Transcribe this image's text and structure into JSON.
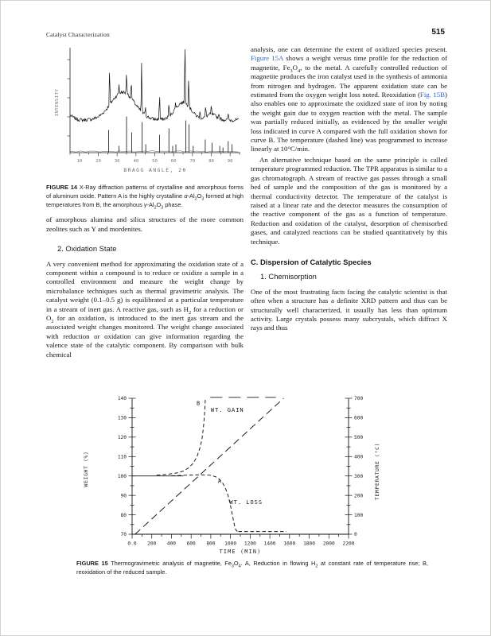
{
  "page": {
    "header_left": "Catalyst Characterization",
    "page_number": "515"
  },
  "colors": {
    "link_blue": "#2e62c9",
    "ink": "#141414"
  },
  "figure14": {
    "caption": [
      {
        "t": "FIGURE 14",
        "b": true
      },
      {
        "t": "  X-Ray diffraction patterns of crystalline and amorphous forms of aluminum oxide. Pattern A is the highly crystalline "
      },
      {
        "t": "α",
        "i": true
      },
      {
        "t": "-Al"
      },
      {
        "t": "2",
        "sub": true
      },
      {
        "t": "O"
      },
      {
        "t": "3",
        "sub": true
      },
      {
        "t": " formed at high temperatures from B, the amorphous "
      },
      {
        "t": "γ",
        "i": true
      },
      {
        "t": "-Al"
      },
      {
        "t": "2",
        "sub": true
      },
      {
        "t": "O"
      },
      {
        "t": "3",
        "sub": true
      },
      {
        "t": " phase."
      }
    ]
  },
  "figure15": {
    "caption": [
      {
        "t": "FIGURE 15",
        "b": true
      },
      {
        "t": "  Thermogravimetric analysis of magnetite, Fe"
      },
      {
        "t": "3",
        "sub": true
      },
      {
        "t": "O"
      },
      {
        "t": "4",
        "sub": true
      },
      {
        "t": ". A, Reduction in flowing H"
      },
      {
        "t": "2",
        "sub": true
      },
      {
        "t": " at constant rate of temperature rise; B, reoxidation of the reduced sample."
      }
    ]
  },
  "left_column": {
    "para1": [
      {
        "t": "of amorphous alumina and silica structures of the more common zeolites such as Y and mordenites."
      }
    ],
    "heading_2": "2. Oxidation State",
    "para2": [
      {
        "t": "A very convenient method for approximating the oxidation state of a component within a compound is to reduce or oxidize a sample in a controlled environment and measure the weight change by microbalance techniques such as thermal gravimetric analysis. The catalyst weight (0.1–0.5 g) is equilibrated at a particular temperature in a stream of inert gas. A reactive gas, such as H"
      },
      {
        "t": "2",
        "sub": true
      },
      {
        "t": " for a reduction or O"
      },
      {
        "t": "2",
        "sub": true
      },
      {
        "t": " for an oxidation, is introduced to the inert gas stream and the associated weight changes monitored. The weight change associated with reduction or oxidation can give information regarding the valence state of the catalytic component. By comparison with bulk chemical"
      }
    ]
  },
  "right_column": {
    "para1": [
      {
        "t": "analysis, one can determine the extent of oxidized species present. "
      },
      {
        "t": "Figure 15A",
        "link": true
      },
      {
        "t": " shows a weight versus time profile for the reduction of magnetite, Fe"
      },
      {
        "t": "3",
        "sub": true
      },
      {
        "t": "O"
      },
      {
        "t": "4",
        "sub": true
      },
      {
        "t": ", to the metal. A carefully controlled reduction of magnetite produces the iron catalyst used in the synthesis of ammonia from nitrogen and hydrogen. The apparent oxidation state can be estimated from the oxygen weight loss noted. Reoxidation ("
      },
      {
        "t": "Fig. 15B",
        "link": true
      },
      {
        "t": ") also enables one to approximate the oxidized state of iron by noting the weight gain due to oxygen reaction with the metal. The sample was partially reduced initially, as evidenced by the smaller weight loss indicated in curve A compared with the full oxidation shown for curve B. The temperature (dashed line) was programmed to increase linearly at 10°C/min."
      }
    ],
    "para2": [
      {
        "t": "An alternative technique based on the same principle is called temperature programmed reduction. The TPR apparatus is similar to a gas chromatograph. A stream of reactive gas passes through a small bed of sample and the composition of the gas is monitored by a thermal conductivity detector. The temperature of the catalyst is raised at a linear rate and the detector measures the consumption of the reactive component of the gas as a function of temperature. Reduction and oxidation of the catalyst, desorption of chemisorbed gases, and catalyzed reactions can be studied quantitatively by this technique."
      }
    ],
    "heading_C": "C. Dispersion of Catalytic Species",
    "heading_1": "1. Chemisorption",
    "para3": [
      {
        "t": "One of the most frustrating facts facing the catalytic scientist is that often when a structure has a definite XRD pattern and thus can be structurally well characterized, it usually has less than optimum activity. Large crystals possess many subcrystals, which diffract X rays and thus"
      }
    ]
  },
  "chart_data": [
    {
      "type": "line",
      "title": "X-ray diffraction patterns of crystalline (A, sticks) and amorphous (B, trace) aluminum oxide",
      "xlabel": "BRAGG ANGLE, 2θ",
      "ylabel": "INTENSITY",
      "xlim": [
        5,
        95
      ],
      "x_ticks": [
        10,
        20,
        30,
        40,
        50,
        60,
        70,
        80,
        90
      ],
      "grid": false,
      "trace_B": {
        "baseline": 41,
        "humps": [
          [
            33,
            9,
            35
          ],
          [
            65,
            6,
            22
          ],
          [
            80,
            4,
            7
          ],
          [
            3,
            4,
            8
          ]
        ],
        "spikes": [
          [
            26,
            48
          ],
          [
            31,
            12
          ],
          [
            35,
            30
          ],
          [
            37.5,
            22
          ],
          [
            43,
            60
          ],
          [
            45,
            14
          ],
          [
            52.5,
            34
          ],
          [
            57.5,
            18
          ],
          [
            61,
            10
          ],
          [
            66,
            88
          ],
          [
            68,
            42
          ],
          [
            74,
            8
          ],
          [
            77,
            14
          ],
          [
            80,
            12
          ],
          [
            84,
            8
          ],
          [
            89,
            10
          ]
        ],
        "noise": 2.2
      },
      "pattern_A_sticks": [
        [
          25.5,
          28
        ],
        [
          31,
          8
        ],
        [
          35,
          45
        ],
        [
          37.7,
          25
        ],
        [
          43.3,
          38
        ],
        [
          45.2,
          10
        ],
        [
          52.5,
          22
        ],
        [
          57.5,
          30
        ],
        [
          59.5,
          8
        ],
        [
          61.2,
          10
        ],
        [
          66.5,
          40
        ],
        [
          68.2,
          35
        ],
        [
          70.4,
          8
        ],
        [
          76.8,
          16
        ],
        [
          80.4,
          12
        ],
        [
          84.5,
          8
        ],
        [
          86.2,
          6
        ],
        [
          89,
          14
        ],
        [
          91,
          10
        ]
      ]
    },
    {
      "type": "line",
      "title": "Thermogravimetric analysis of magnetite",
      "xlabel": "TIME (MIN)",
      "ylabel_left": "WEIGHT (%)",
      "ylabel_right": "TEMPERATURE (°C)",
      "xlim": [
        0,
        2200
      ],
      "x_major": 200,
      "x_minor": 100,
      "x_tick_labels": [
        "0.0",
        "200",
        "400",
        "600",
        "800",
        "1000",
        "1200",
        "1400",
        "1600",
        "1800",
        "2000",
        "2200"
      ],
      "weight_lim": [
        70,
        140
      ],
      "weight_major": 10,
      "weight_minor": 5,
      "temp_lim": [
        0,
        700
      ],
      "temp_major": 100,
      "temp_minor": 50,
      "grid": false,
      "series": [
        {
          "name": "initial-weight",
          "axis": "weight",
          "style": "solid",
          "points": [
            [
              0,
              100
            ],
            [
              520,
              100
            ]
          ]
        },
        {
          "name": "B-reoxidation-rise",
          "axis": "weight",
          "style": "short-dash",
          "points": [
            [
              250,
              100.4
            ],
            [
              350,
              100.8
            ],
            [
              450,
              101.5
            ],
            [
              520,
              102.5
            ],
            [
              570,
              104
            ],
            [
              620,
              106.5
            ],
            [
              660,
              110
            ],
            [
              690,
              114.5
            ],
            [
              710,
              119
            ],
            [
              725,
              125
            ],
            [
              735,
              131
            ],
            [
              741,
              136
            ],
            [
              744,
              140
            ]
          ]
        },
        {
          "name": "B-top-plateau",
          "axis": "weight",
          "style": "long-dash",
          "points": [
            [
              795,
              140.5
            ],
            [
              1460,
              140.5
            ]
          ]
        },
        {
          "name": "A-reduction-drop",
          "axis": "weight",
          "style": "short-dash",
          "points": [
            [
              400,
              100.1
            ],
            [
              550,
              100.4
            ],
            [
              700,
              100.6
            ],
            [
              790,
              100.4
            ],
            [
              850,
              99.6
            ],
            [
              890,
              98.2
            ],
            [
              925,
              96
            ],
            [
              950,
              93.5
            ],
            [
              975,
              90
            ],
            [
              995,
              86
            ],
            [
              1015,
              81
            ],
            [
              1032,
              76.5
            ],
            [
              1047,
              73.2
            ],
            [
              1060,
              71.8
            ],
            [
              1080,
              71.4
            ]
          ]
        },
        {
          "name": "A-bottom-plateau",
          "axis": "weight",
          "style": "short-dash",
          "points": [
            [
              1080,
              71.4
            ],
            [
              1570,
              71.4
            ]
          ]
        },
        {
          "name": "temperature-ramp",
          "axis": "temp",
          "style": "med-dash",
          "points": [
            [
              30,
              0
            ],
            [
              1540,
              700
            ]
          ]
        }
      ],
      "labels": [
        {
          "t": "B",
          "x": 655,
          "w": 136.5
        },
        {
          "t": "WT. GAIN",
          "x": 800,
          "w": 133
        },
        {
          "t": "A",
          "x": 872,
          "w": 96.5
        },
        {
          "t": "WT. LOSS",
          "x": 990,
          "w": 85.5
        }
      ]
    }
  ]
}
